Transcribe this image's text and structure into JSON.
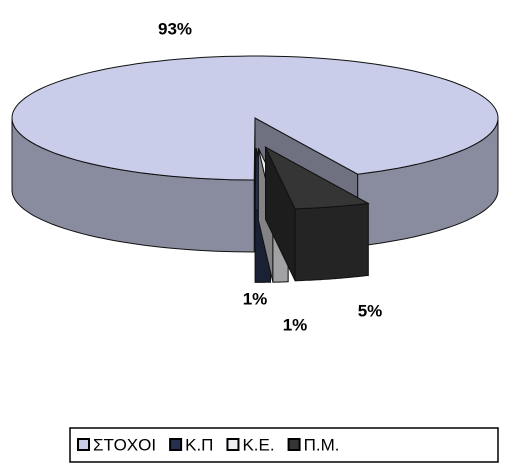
{
  "chart_data": {
    "type": "pie",
    "categories": [
      "ΣΤΟΧΟΙ",
      "Κ.Π",
      "Κ.Ε.",
      "Π.Μ."
    ],
    "values": [
      93,
      1,
      1,
      5
    ],
    "value_labels": [
      "93%",
      "1%",
      "1%",
      "5%"
    ],
    "colors": [
      "#c9cdea",
      "#26304e",
      "#eeeef2",
      "#353535"
    ],
    "legend": "bottom"
  }
}
